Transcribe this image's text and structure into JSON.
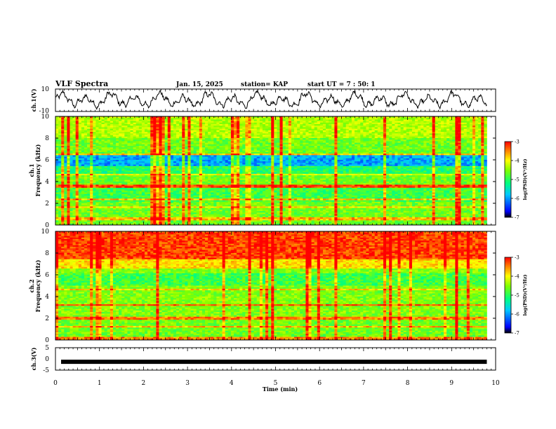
{
  "header": {
    "title": "VLF Spectra",
    "date": "Jan. 15, 2025",
    "station": "station= KAP",
    "start": "start UT =  7 : 50: 1"
  },
  "chart_data": [
    {
      "id": "ch1-waveform",
      "type": "line",
      "ylabel": "ch.1(V)",
      "ylim": [
        -10,
        10
      ],
      "yticks": [
        "10",
        "-10"
      ],
      "xlim": [
        0,
        10
      ],
      "description_free": true
    },
    {
      "id": "ch1-spectrogram",
      "type": "heatmap",
      "ylabel_line1": "ch.1",
      "ylabel_line2": "Frequency (kHz)",
      "ylim": [
        0,
        10
      ],
      "yticks": [
        "0",
        "2",
        "4",
        "6",
        "8",
        "10"
      ],
      "xlim": [
        0,
        9.8
      ],
      "colorbar": {
        "label": "log(PSD)(V²/Hz)",
        "range": [
          -7,
          -3
        ],
        "ticks": [
          "-3",
          "-4",
          "-5",
          "-6",
          "-7"
        ]
      }
    },
    {
      "id": "ch2-spectrogram",
      "type": "heatmap",
      "ylabel_line1": "ch.2",
      "ylabel_line2": "Frequency (kHz)",
      "ylim": [
        0,
        10
      ],
      "yticks": [
        "0",
        "2",
        "4",
        "6",
        "8",
        "10"
      ],
      "xlim": [
        0,
        9.8
      ],
      "colorbar": {
        "label": "log(PSD)(V²/Hz)",
        "range": [
          -7,
          -3
        ],
        "ticks": [
          "-3",
          "-4",
          "-5",
          "-6",
          "-7"
        ]
      }
    },
    {
      "id": "ch3-waveform",
      "type": "line",
      "ylabel": "ch.3(V)",
      "ylim": [
        -5,
        5
      ],
      "yticks": [
        "5",
        "0",
        "-5"
      ],
      "xlim": [
        0,
        10
      ],
      "xticks": [
        "0",
        "1",
        "2",
        "3",
        "4",
        "5",
        "6",
        "7",
        "8",
        "9",
        "10"
      ],
      "xlabel": "Time (min)",
      "level": -1.3,
      "line_end": 9.8
    }
  ]
}
